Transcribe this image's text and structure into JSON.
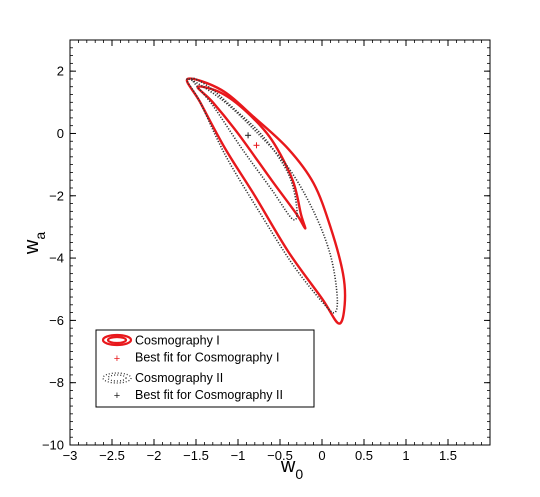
{
  "chart_data": {
    "type": "line",
    "title": "",
    "xlabel": "w",
    "xlabel_sub": "0",
    "ylabel": "w",
    "ylabel_sub": "a",
    "xlim": [
      -3,
      2
    ],
    "ylim": [
      -10,
      3
    ],
    "x_ticks": [
      -3,
      -2.5,
      -2,
      -1.5,
      -1,
      -0.5,
      0,
      0.5,
      1,
      1.5
    ],
    "x_tick_labels": [
      "−3",
      "−2.5",
      "−2",
      "−1.5",
      "−1",
      "−0.5",
      "0",
      "0.5",
      "1",
      "1.5"
    ],
    "y_ticks": [
      -10,
      -8,
      -6,
      -4,
      -2,
      0,
      2
    ],
    "y_tick_labels": [
      "−10",
      "−8",
      "−6",
      "−4",
      "−2",
      "0",
      "2"
    ],
    "grid": false,
    "legend_position": "bottom-left",
    "series": [
      {
        "name": "Cosmography I",
        "style": "solid",
        "color": "#e8181c",
        "contours": [
          [
            [
              -1.48,
              1.5
            ],
            [
              -1.3,
              1.0
            ],
            [
              -1.0,
              0.0
            ],
            [
              -0.6,
              -1.5
            ],
            [
              -0.3,
              -2.6
            ],
            [
              -0.2,
              -3.05
            ],
            [
              -0.25,
              -2.6
            ],
            [
              -0.35,
              -1.5
            ],
            [
              -0.6,
              -0.2
            ],
            [
              -0.9,
              0.7
            ],
            [
              -1.2,
              1.3
            ],
            [
              -1.48,
              1.5
            ]
          ],
          [
            [
              -1.6,
              1.75
            ],
            [
              -1.45,
              1.0
            ],
            [
              -1.15,
              -0.5
            ],
            [
              -0.8,
              -2.0
            ],
            [
              -0.4,
              -3.8
            ],
            [
              0.0,
              -5.3
            ],
            [
              0.2,
              -6.1
            ],
            [
              0.27,
              -5.5
            ],
            [
              0.25,
              -4.5
            ],
            [
              0.1,
              -3.0
            ],
            [
              -0.1,
              -1.6
            ],
            [
              -0.4,
              -0.5
            ],
            [
              -0.8,
              0.5
            ],
            [
              -1.2,
              1.4
            ],
            [
              -1.6,
              1.75
            ]
          ]
        ]
      },
      {
        "name": "Cosmography II",
        "style": "dotted",
        "color": "#333333",
        "contours": [
          [
            [
              -1.55,
              1.75
            ],
            [
              -1.3,
              0.9
            ],
            [
              -0.95,
              -0.5
            ],
            [
              -0.6,
              -1.8
            ],
            [
              -0.35,
              -2.75
            ],
            [
              -0.3,
              -2.4
            ],
            [
              -0.4,
              -1.3
            ],
            [
              -0.7,
              -0.1
            ],
            [
              -1.05,
              0.8
            ],
            [
              -1.35,
              1.5
            ],
            [
              -1.55,
              1.75
            ]
          ],
          [
            [
              -1.6,
              1.75
            ],
            [
              -1.45,
              1.0
            ],
            [
              -1.15,
              -0.7
            ],
            [
              -0.75,
              -2.5
            ],
            [
              -0.35,
              -4.2
            ],
            [
              0.0,
              -5.4
            ],
            [
              0.15,
              -5.75
            ],
            [
              0.18,
              -5.2
            ],
            [
              0.1,
              -3.9
            ],
            [
              -0.1,
              -2.5
            ],
            [
              -0.4,
              -1.1
            ],
            [
              -0.8,
              0.1
            ],
            [
              -1.2,
              1.1
            ],
            [
              -1.6,
              1.75
            ]
          ]
        ]
      }
    ],
    "points": [
      {
        "name": "Best fit for Cosmography I",
        "x": -0.78,
        "y": -0.38,
        "marker": "+",
        "color": "#e8181c"
      },
      {
        "name": "Best fit for Cosmography II",
        "x": -0.88,
        "y": -0.06,
        "marker": "+",
        "color": "#222222"
      }
    ]
  }
}
